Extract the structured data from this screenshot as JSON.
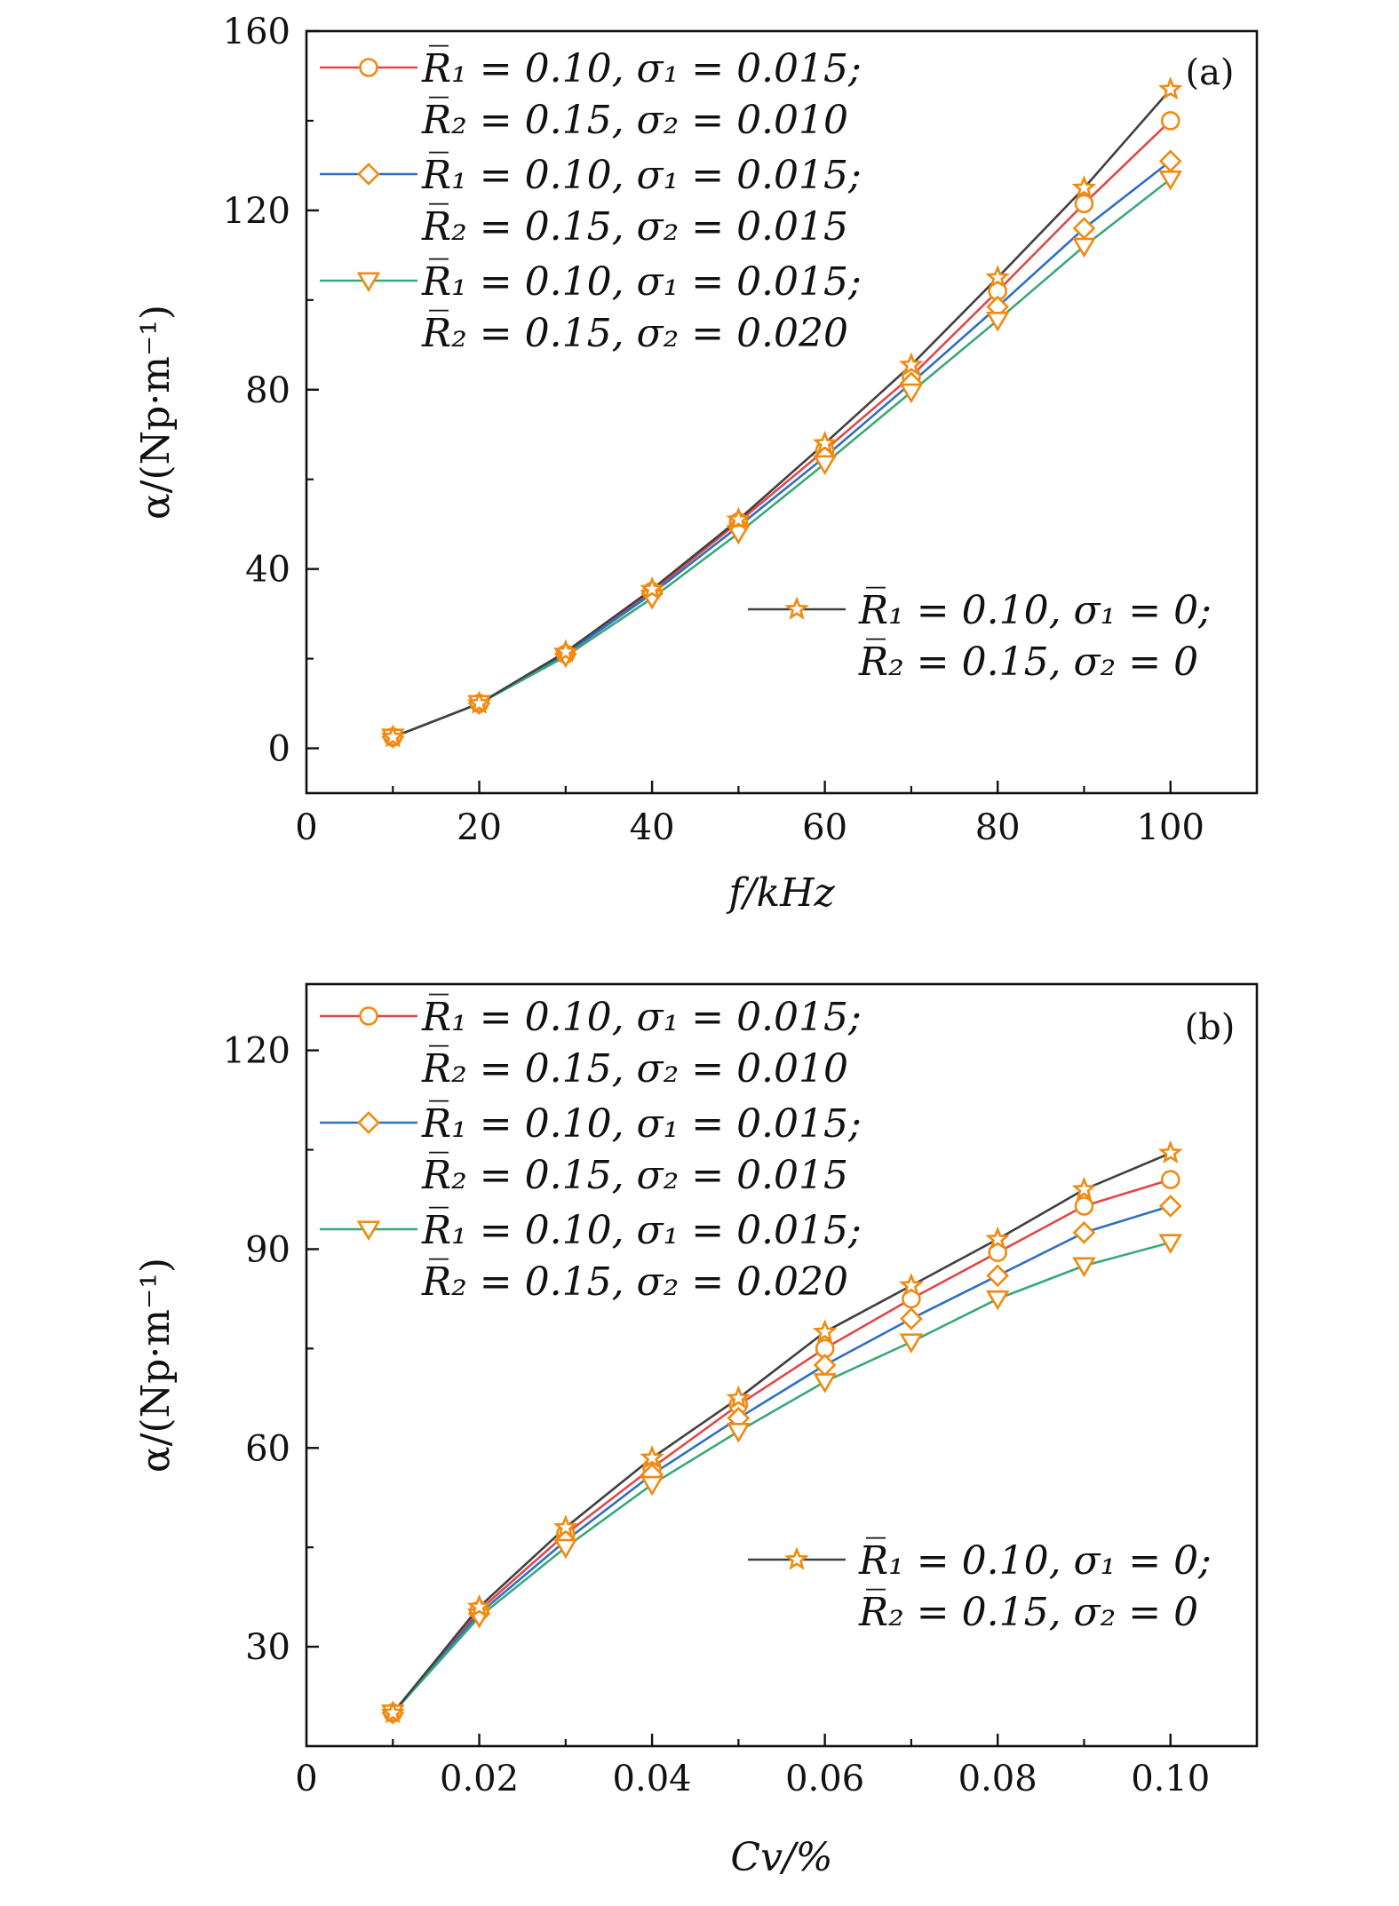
{
  "colors": {
    "marker": "#F08A10",
    "line_sigma2_010": "#E04848",
    "line_sigma2_015": "#2E6FC4",
    "line_sigma2_020": "#3AA878",
    "line_sigma0": "#404040",
    "axis": "#111111"
  },
  "series_meta": [
    {
      "key": "s010",
      "color_key": "line_sigma2_010",
      "marker": "circle",
      "legend_line1": "R̅₁ = 0.10, σ₁ = 0.015;",
      "legend_line2": "R̅₂ = 0.15, σ₂ = 0.010"
    },
    {
      "key": "s015",
      "color_key": "line_sigma2_015",
      "marker": "diamond",
      "legend_line1": "R̅₁ = 0.10, σ₁ = 0.015;",
      "legend_line2": "R̅₂ = 0.15, σ₂ = 0.015"
    },
    {
      "key": "s020",
      "color_key": "line_sigma2_020",
      "marker": "triangle-down",
      "legend_line1": "R̅₁ = 0.10, σ₁ = 0.015;",
      "legend_line2": "R̅₂ = 0.15, σ₂ = 0.020"
    },
    {
      "key": "s0",
      "color_key": "line_sigma0",
      "marker": "star",
      "legend_line1": "R̅₁ = 0.10, σ₁ = 0;",
      "legend_line2": "R̅₂ = 0.15, σ₂ = 0"
    }
  ],
  "chart_data": [
    {
      "type": "line",
      "panel_label": "(a)",
      "xlabel": "f/kHz",
      "ylabel": "α/(Np·m⁻¹)",
      "xlim": [
        0,
        110
      ],
      "ylim": [
        -10,
        160
      ],
      "xticks": [
        0,
        20,
        40,
        60,
        80,
        100
      ],
      "xtick_labels": [
        "0",
        "20",
        "40",
        "60",
        "80",
        "100"
      ],
      "yticks": [
        0,
        40,
        80,
        120,
        160
      ],
      "ytick_labels": [
        "0",
        "40",
        "80",
        "120",
        "160"
      ],
      "yminor": [
        20,
        60,
        100,
        140
      ],
      "legend_position_main": "top-left",
      "legend_position_extra": "lower-right",
      "x": [
        10,
        20,
        30,
        40,
        50,
        60,
        70,
        80,
        90,
        100
      ],
      "series": [
        {
          "key": "s010",
          "values": [
            2.5,
            10,
            21,
            35,
            50.5,
            66.5,
            83,
            102,
            121.5,
            140
          ]
        },
        {
          "key": "s015",
          "values": [
            2.5,
            10,
            21,
            34.5,
            49.5,
            65,
            81.5,
            98.5,
            116,
            131
          ]
        },
        {
          "key": "s020",
          "values": [
            2.5,
            10,
            20.5,
            33.5,
            48,
            63.5,
            79.5,
            95.5,
            112,
            127
          ]
        },
        {
          "key": "s0",
          "values": [
            2.5,
            10,
            21.5,
            35.5,
            51,
            68,
            85.5,
            105,
            125,
            147
          ]
        }
      ]
    },
    {
      "type": "line",
      "panel_label": "(b)",
      "xlabel": "Cv/%",
      "ylabel": "α/(Np·m⁻¹)",
      "xlim": [
        0,
        0.11
      ],
      "ylim": [
        15,
        130
      ],
      "xticks": [
        0,
        0.02,
        0.04,
        0.06,
        0.08,
        0.1
      ],
      "xtick_labels": [
        "0",
        "0.02",
        "0.04",
        "0.06",
        "0.08",
        "0.10"
      ],
      "yticks": [
        30,
        60,
        90,
        120
      ],
      "ytick_labels": [
        "30",
        "60",
        "90",
        "120"
      ],
      "yminor": [
        15,
        45,
        75,
        105
      ],
      "legend_position_main": "top-left",
      "legend_position_extra": "lower-right",
      "x": [
        0.01,
        0.02,
        0.03,
        0.04,
        0.05,
        0.06,
        0.07,
        0.08,
        0.09,
        0.1
      ],
      "series": [
        {
          "key": "s010",
          "values": [
            20,
            35.5,
            47,
            57,
            66.5,
            75,
            82.5,
            89.5,
            96.5,
            100.5
          ]
        },
        {
          "key": "s015",
          "values": [
            20,
            35,
            46,
            56,
            64.5,
            72.5,
            79.5,
            86,
            92.5,
            96.5
          ]
        },
        {
          "key": "s020",
          "values": [
            20,
            34.5,
            45,
            54.5,
            62.5,
            70,
            76,
            82.5,
            87.5,
            91
          ]
        },
        {
          "key": "s0",
          "values": [
            20,
            36,
            48,
            58.5,
            67.5,
            77.5,
            84.5,
            91.5,
            99,
            104.5
          ]
        }
      ]
    }
  ]
}
